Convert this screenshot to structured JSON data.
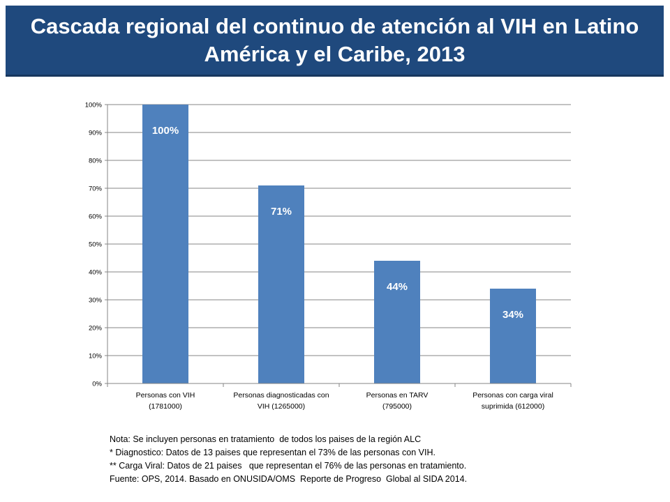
{
  "header": {
    "title": "Cascada regional del continuo de atención al VIH en Latino América y el Caribe, 2013"
  },
  "colors": {
    "banner": "#1f497d",
    "bar": "#4f81bd",
    "grid": "#868686"
  },
  "chart_data": {
    "type": "bar",
    "title": "",
    "xlabel": "",
    "ylabel": "",
    "ylim": [
      0,
      100
    ],
    "yticks": [
      "0%",
      "10%",
      "20%",
      "30%",
      "40%",
      "50%",
      "60%",
      "70%",
      "80%",
      "90%",
      "100%"
    ],
    "categories": [
      [
        "Personas con VIH",
        "(1781000)"
      ],
      [
        "Personas diagnosticadas con",
        "VIH (1265000)"
      ],
      [
        "Personas en TARV",
        "(795000)"
      ],
      [
        "Personas con carga viral",
        "suprimida (612000)"
      ]
    ],
    "values": [
      100,
      71,
      44,
      34
    ],
    "data_labels": [
      "100%",
      "71%",
      "44%",
      "34%"
    ],
    "grid": true,
    "legend": "none"
  },
  "notes": [
    "Nota: Se incluyen personas en tratamiento  de todos los paises de la región ALC",
    "* Diagnostico: Datos de 13 paises que representan el 73% de las personas con VIH.",
    "** Carga Viral: Datos de 21 paises   que representan el 76% de las personas en tratamiento.",
    "Fuente: OPS, 2014. Basado en ONUSIDA/OMS  Reporte de Progreso  Global al SIDA 2014."
  ]
}
